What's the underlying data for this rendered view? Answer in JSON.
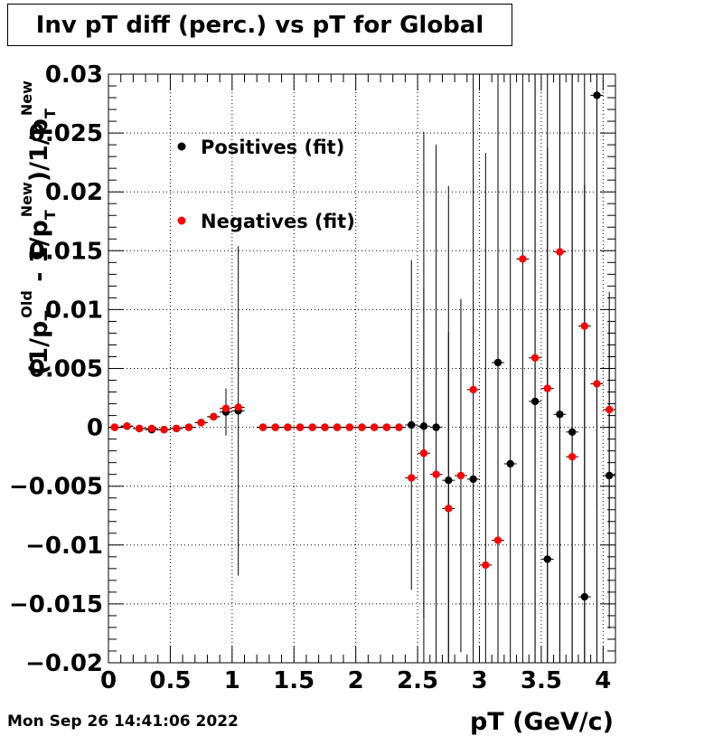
{
  "title": "Inv pT diff (perc.) vs pT for Global",
  "timestamp": "Mon Sep 26 14:41:06 2022",
  "colors": {
    "positives": "#000000",
    "negatives": "#ff0000",
    "grid": "#000000"
  },
  "chart_data": {
    "type": "scatter",
    "xlabel": "pT (GeV/c)",
    "ylabel": "(1/p_T^Old - 1/p_T^New)/1/p_T^New",
    "xlim": [
      0,
      4.1
    ],
    "ylim": [
      -0.02,
      0.03
    ],
    "grid": true,
    "legend_placement": "top-left",
    "x_ticks": [
      "0",
      "0.5",
      "1",
      "1.5",
      "2",
      "2.5",
      "3",
      "3.5",
      "4"
    ],
    "y_ticks": [
      "−0.02",
      "−0.015",
      "−0.01",
      "−0.005",
      "0",
      "0.005",
      "0.01",
      "0.015",
      "0.02",
      "0.025",
      "0.03"
    ],
    "series": [
      {
        "name": "Positives (fit)",
        "x": [
          0.05,
          0.15,
          0.25,
          0.35,
          0.45,
          0.55,
          0.65,
          0.75,
          0.85,
          0.95,
          1.05,
          1.25,
          1.35,
          1.45,
          1.55,
          1.65,
          1.75,
          1.85,
          1.95,
          2.05,
          2.15,
          2.25,
          2.35,
          2.45,
          2.55,
          2.65,
          2.75,
          2.85,
          2.95,
          3.05,
          3.15,
          3.25,
          3.35,
          3.45,
          3.55,
          3.65,
          3.75,
          3.85,
          3.95,
          4.05
        ],
        "y": [
          0,
          0.0001,
          -0.0001,
          -0.0002,
          -0.0002,
          -0.0001,
          0,
          0.0004,
          0.0009,
          0.0013,
          0.0014,
          0,
          0,
          0,
          0,
          0,
          0,
          0,
          0,
          0,
          0,
          0,
          0,
          0.0002,
          0.0001,
          0,
          -0.0045,
          null,
          -0.0044,
          null,
          0.0055,
          -0.0031,
          null,
          0.0022,
          -0.0112,
          0.0011,
          -0.0004,
          -0.0144,
          0.0282,
          -0.0041
        ],
        "err": [
          0,
          0,
          0,
          0,
          0,
          0,
          0,
          0,
          0,
          0.002,
          0.014,
          0,
          0,
          0,
          0,
          0,
          0,
          0,
          0,
          0,
          0,
          0,
          0,
          0.014,
          0.025,
          0.024,
          0.025,
          null,
          0.035,
          null,
          0.035,
          0.035,
          null,
          0.035,
          0.035,
          0.035,
          0.035,
          0.035,
          0.035,
          0.013
        ]
      },
      {
        "name": "Negatives (fit)",
        "x": [
          0.05,
          0.15,
          0.25,
          0.35,
          0.45,
          0.55,
          0.65,
          0.75,
          0.85,
          0.95,
          1.05,
          1.25,
          1.35,
          1.45,
          1.55,
          1.65,
          1.75,
          1.85,
          1.95,
          2.05,
          2.15,
          2.25,
          2.35,
          2.45,
          2.55,
          2.65,
          2.75,
          2.85,
          2.95,
          3.05,
          3.15,
          3.25,
          3.35,
          3.45,
          3.55,
          3.65,
          3.75,
          3.85,
          3.95,
          4.05
        ],
        "y": [
          0,
          0.0001,
          -0.0001,
          -0.0001,
          -0.0002,
          -0.0001,
          0,
          0.0004,
          0.0009,
          0.0016,
          0.0017,
          0,
          0,
          0,
          0,
          0,
          0,
          0,
          0,
          0,
          0,
          0,
          0,
          -0.0043,
          -0.0022,
          -0.004,
          -0.0069,
          -0.0041,
          0.0032,
          -0.0117,
          -0.0096,
          null,
          0.0143,
          0.0059,
          0.0033,
          0.0149,
          -0.0025,
          0.0086,
          0.0037,
          0.0015
        ],
        "err": [
          0,
          0,
          0,
          0,
          0,
          0,
          0,
          0,
          0,
          0,
          0,
          0,
          0,
          0,
          0,
          0,
          0,
          0,
          0,
          0,
          0,
          0,
          0,
          0,
          0.014,
          0,
          0.015,
          0.015,
          0,
          0.035,
          0.035,
          null,
          0.035,
          0.035,
          0.035,
          0.035,
          0.035,
          0.035,
          0.035,
          0.01
        ]
      }
    ]
  }
}
